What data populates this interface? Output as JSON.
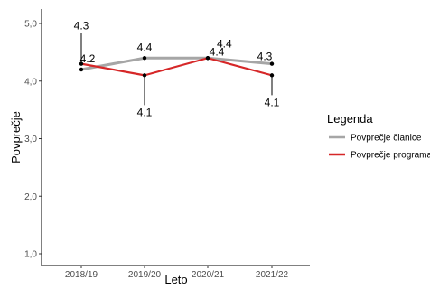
{
  "chart_data": {
    "type": "line",
    "categories": [
      "2018/19",
      "2019/20",
      "2020/21",
      "2021/22"
    ],
    "xlabel": "Leto",
    "ylabel": "Povprečje",
    "ylim": [
      1.0,
      5.0
    ],
    "y_ticks": [
      1.0,
      2.0,
      3.0,
      4.0,
      5.0
    ],
    "y_tick_labels": [
      "1,0",
      "2,0",
      "3,0",
      "4,0",
      "5,0"
    ],
    "grid": false,
    "legend": {
      "title": "Legenda",
      "position": "right"
    },
    "series": [
      {
        "name": "Povprečje članice",
        "color": "#a6a6a6",
        "values": [
          4.2,
          4.4,
          4.4,
          4.3
        ],
        "labels": [
          "4.2",
          "4.4",
          "4.4",
          "4.3"
        ]
      },
      {
        "name": "Povprečje programa",
        "color": "#d62728",
        "values": [
          4.3,
          4.1,
          4.4,
          4.1
        ],
        "labels": [
          "4.3",
          "4.1",
          "4.4",
          "4.1"
        ]
      }
    ]
  }
}
